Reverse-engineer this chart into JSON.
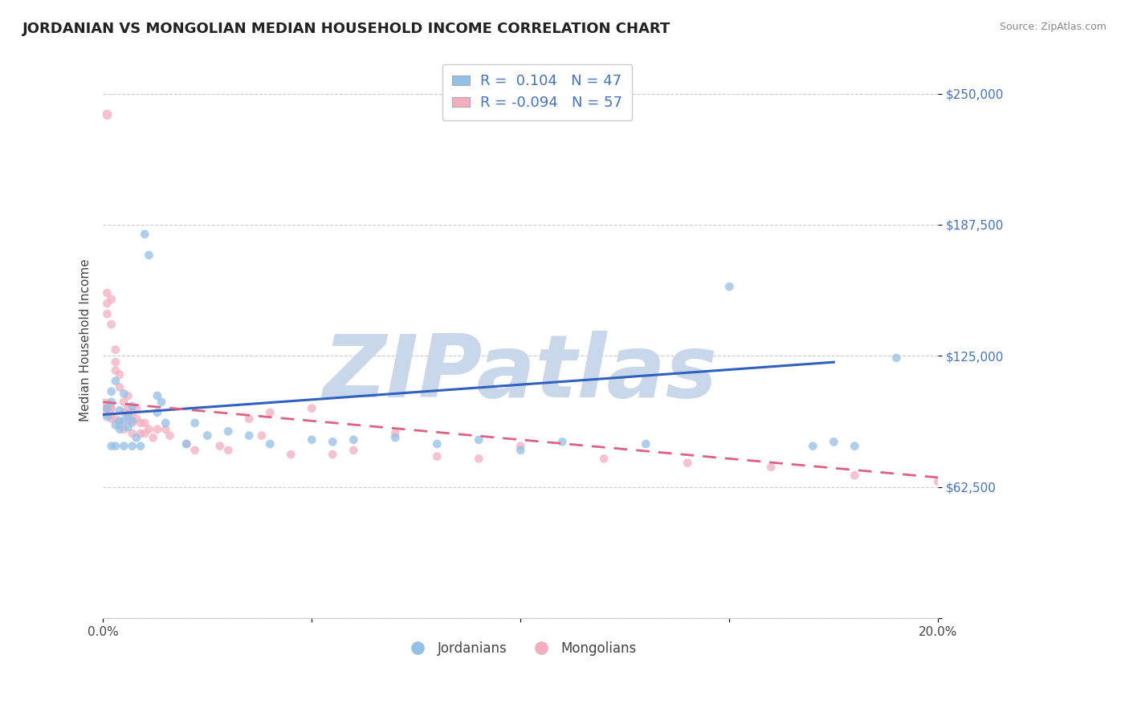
{
  "title": "JORDANIAN VS MONGOLIAN MEDIAN HOUSEHOLD INCOME CORRELATION CHART",
  "source": "Source: ZipAtlas.com",
  "ylabel": "Median Household Income",
  "y_ticks": [
    0,
    62500,
    125000,
    187500,
    250000
  ],
  "y_tick_labels": [
    "",
    "$62,500",
    "$125,000",
    "$187,500",
    "$250,000"
  ],
  "xlim": [
    0.0,
    0.2
  ],
  "ylim": [
    20000,
    265000
  ],
  "legend_label1": "Jordanians",
  "legend_label2": "Mongolians",
  "blue_color": "#92c0e8",
  "pink_color": "#f4aec0",
  "blue_line_color": "#3060c0",
  "pink_line_color": "#e06080",
  "watermark": "ZIPatlas",
  "watermark_color": "#c8d8ea",
  "background_color": "#ffffff",
  "grid_color": "#cccccc",
  "blue_trend_x0": 0.0,
  "blue_trend_y0": 97000,
  "blue_trend_x1": 0.175,
  "blue_trend_y1": 122000,
  "pink_trend_x0": 0.0,
  "pink_trend_y0": 103000,
  "pink_trend_x1": 0.2,
  "pink_trend_y1": 67000,
  "blue_scatter_x": [
    0.001,
    0.001,
    0.002,
    0.002,
    0.003,
    0.003,
    0.004,
    0.004,
    0.004,
    0.005,
    0.005,
    0.006,
    0.006,
    0.007,
    0.007,
    0.008,
    0.01,
    0.011,
    0.013,
    0.013,
    0.014,
    0.015,
    0.02,
    0.022,
    0.025,
    0.03,
    0.035,
    0.04,
    0.05,
    0.055,
    0.06,
    0.07,
    0.08,
    0.09,
    0.1,
    0.11,
    0.13,
    0.15,
    0.17,
    0.175,
    0.18,
    0.19,
    0.002,
    0.003,
    0.005,
    0.007,
    0.009
  ],
  "blue_scatter_y": [
    100000,
    96000,
    108000,
    103000,
    92000,
    113000,
    94000,
    99000,
    90000,
    94000,
    107000,
    91000,
    97000,
    94000,
    101000,
    86000,
    183000,
    173000,
    98000,
    106000,
    103000,
    93000,
    83000,
    93000,
    87000,
    89000,
    87000,
    83000,
    85000,
    84000,
    85000,
    86000,
    83000,
    85000,
    80000,
    84000,
    83000,
    158000,
    82000,
    84000,
    82000,
    124000,
    82000,
    82000,
    82000,
    82000,
    82000
  ],
  "blue_scatter_sizes": [
    60,
    60,
    60,
    60,
    60,
    60,
    60,
    60,
    60,
    60,
    60,
    60,
    60,
    60,
    60,
    60,
    60,
    60,
    60,
    60,
    60,
    60,
    60,
    60,
    60,
    60,
    60,
    60,
    60,
    60,
    60,
    60,
    60,
    60,
    60,
    60,
    60,
    60,
    60,
    60,
    60,
    60,
    60,
    60,
    60,
    60,
    60
  ],
  "pink_scatter_x": [
    0.0005,
    0.001,
    0.001,
    0.001,
    0.001,
    0.001,
    0.002,
    0.002,
    0.002,
    0.002,
    0.003,
    0.003,
    0.003,
    0.003,
    0.004,
    0.004,
    0.004,
    0.005,
    0.005,
    0.005,
    0.006,
    0.006,
    0.006,
    0.007,
    0.007,
    0.007,
    0.008,
    0.008,
    0.009,
    0.009,
    0.01,
    0.01,
    0.011,
    0.012,
    0.013,
    0.015,
    0.016,
    0.02,
    0.022,
    0.028,
    0.03,
    0.035,
    0.038,
    0.04,
    0.045,
    0.05,
    0.055,
    0.06,
    0.07,
    0.08,
    0.09,
    0.1,
    0.12,
    0.14,
    0.16,
    0.18,
    0.2
  ],
  "pink_scatter_y": [
    100000,
    240000,
    155000,
    150000,
    145000,
    100000,
    152000,
    140000,
    100000,
    95000,
    128000,
    122000,
    118000,
    95000,
    116000,
    110000,
    92000,
    103000,
    98000,
    90000,
    106000,
    100000,
    95000,
    98000,
    93000,
    88000,
    100000,
    95000,
    93000,
    88000,
    93000,
    88000,
    90000,
    86000,
    90000,
    90000,
    87000,
    83000,
    80000,
    82000,
    80000,
    95000,
    87000,
    98000,
    78000,
    100000,
    78000,
    80000,
    88000,
    77000,
    76000,
    82000,
    76000,
    74000,
    72000,
    68000,
    65000
  ],
  "pink_scatter_sizes": [
    300,
    80,
    60,
    60,
    60,
    60,
    60,
    60,
    60,
    60,
    60,
    60,
    60,
    60,
    60,
    60,
    60,
    60,
    60,
    60,
    60,
    60,
    60,
    60,
    60,
    60,
    60,
    60,
    60,
    60,
    60,
    60,
    60,
    60,
    60,
    60,
    60,
    60,
    60,
    60,
    60,
    60,
    60,
    60,
    60,
    60,
    60,
    60,
    60,
    60,
    60,
    60,
    60,
    60,
    60,
    60,
    60
  ]
}
